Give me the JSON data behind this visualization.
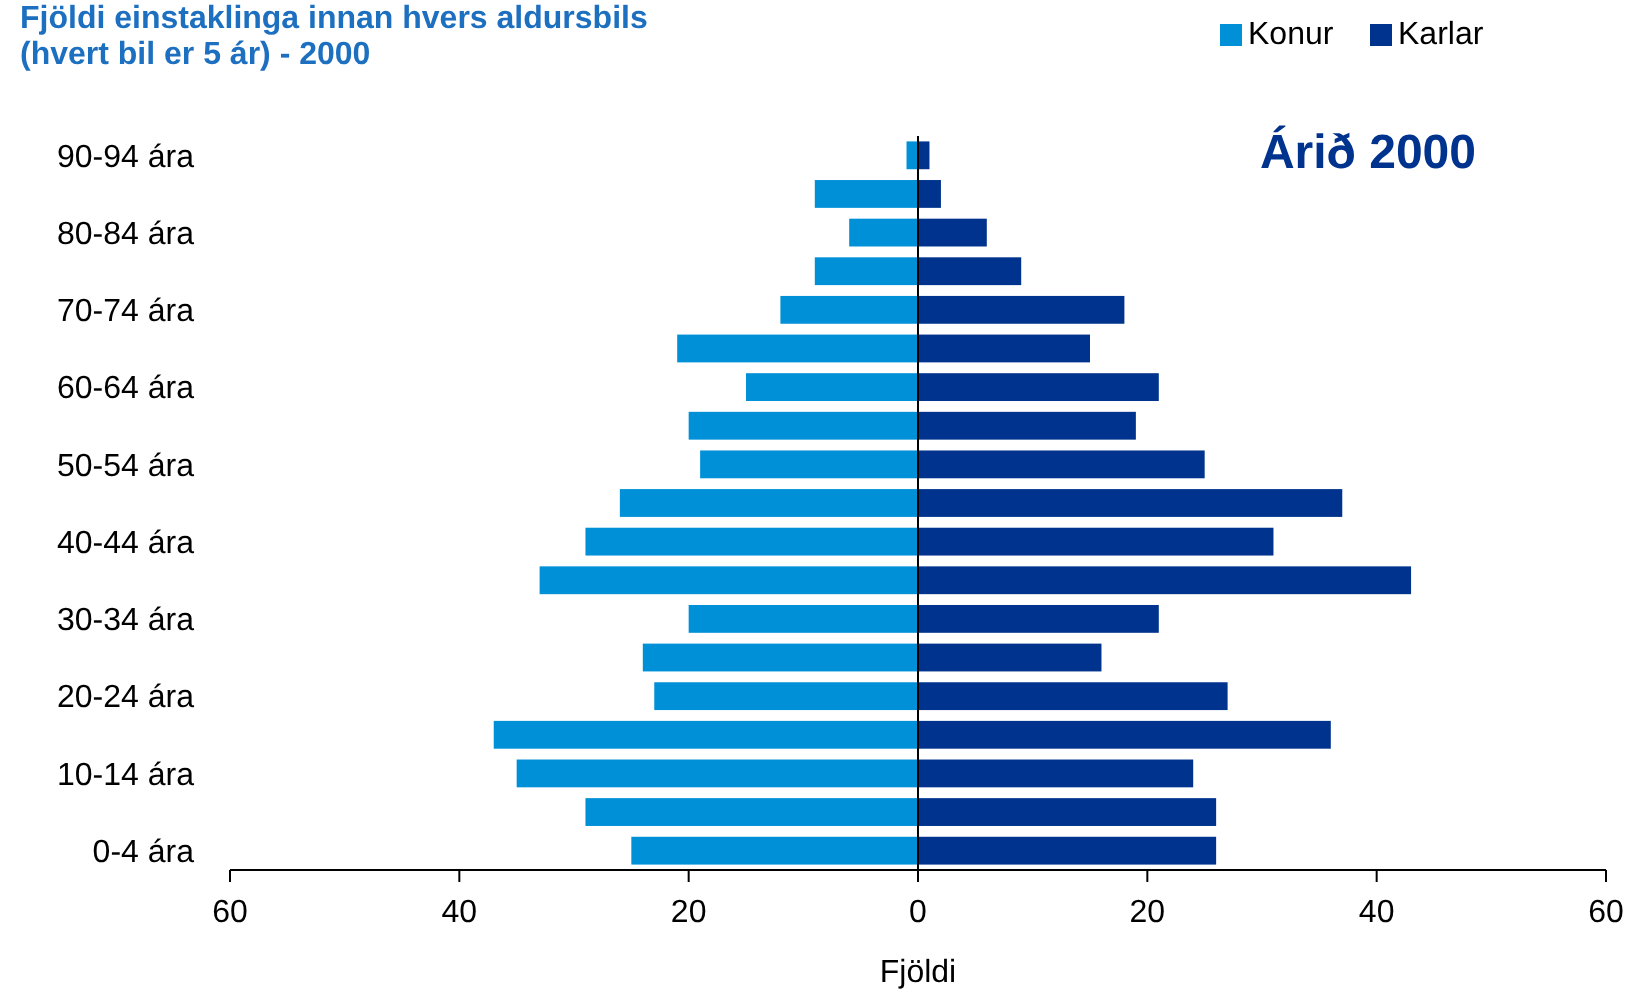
{
  "chart_data": {
    "type": "bar",
    "orientation": "horizontal",
    "stacked": true,
    "title": "Fjöldi einstaklinga innan hvers aldursbils (hvert bil er 5 ár) - 2000",
    "xlabel": "Fjöldi",
    "annotations": [
      "Árið 2000"
    ],
    "categories": [
      "90-94 ára",
      null,
      "80-84 ára",
      null,
      "70-74 ára",
      null,
      "60-64 ára",
      null,
      "50-54 ára",
      null,
      "40-44 ára",
      null,
      "30-34 ára",
      null,
      "20-24 ára",
      null,
      "10-14 ára",
      null,
      "0-4 ára"
    ],
    "series": [
      {
        "name": "Konur",
        "color": "#0090d8",
        "values": [
          -1,
          -9,
          -6,
          -9,
          -12,
          -21,
          -15,
          -20,
          -19,
          -26,
          -29,
          -33,
          -20,
          -24,
          -23,
          -37,
          -35,
          -29,
          -25
        ]
      },
      {
        "name": "Karlar",
        "color": "#00338d",
        "values": [
          1,
          2,
          6,
          9,
          18,
          15,
          21,
          19,
          25,
          37,
          31,
          43,
          21,
          16,
          27,
          36,
          24,
          26,
          26
        ]
      }
    ],
    "xlim": [
      -60,
      60
    ],
    "xticks": [
      {
        "value": -60,
        "label": "60"
      },
      {
        "value": -40,
        "label": "40"
      },
      {
        "value": -20,
        "label": "20"
      },
      0,
      20,
      40,
      60
    ],
    "legend": "top right"
  }
}
